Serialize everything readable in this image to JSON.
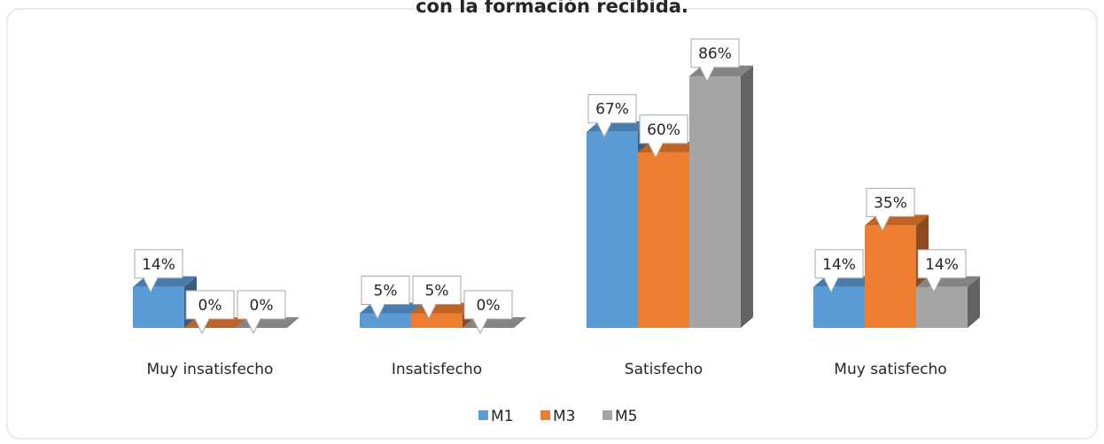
{
  "chart_data": {
    "type": "bar3d",
    "title": "con la formación recibida.",
    "categories": [
      "Muy insatisfecho",
      "Insatisfecho",
      "Satisfecho",
      "Muy satisfecho"
    ],
    "series": [
      {
        "name": "M1",
        "color": "#5b9bd5",
        "values": [
          14,
          5,
          67,
          14
        ],
        "value_labels": [
          "14%",
          "5%",
          "67%",
          "14%"
        ]
      },
      {
        "name": "M3",
        "color": "#ed7d31",
        "values": [
          0,
          5,
          60,
          35
        ],
        "value_labels": [
          "0%",
          "5%",
          "60%",
          "35%"
        ]
      },
      {
        "name": "M5",
        "color": "#a5a5a5",
        "values": [
          0,
          0,
          86,
          14
        ],
        "value_labels": [
          "0%",
          "0%",
          "86%",
          "14%"
        ]
      }
    ],
    "legend": "bottom"
  }
}
